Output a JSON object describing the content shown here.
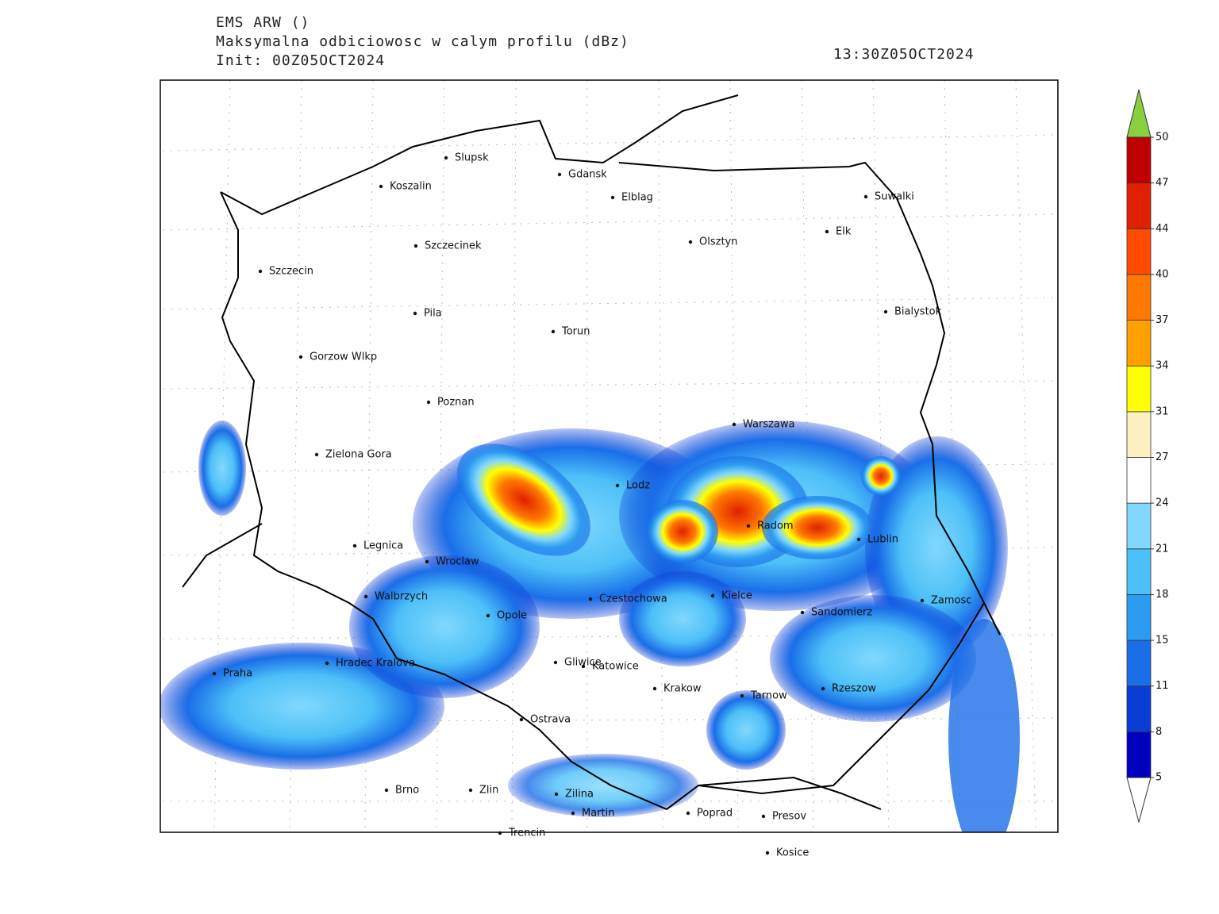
{
  "header": {
    "model": "EMS ARW ()",
    "field": "Maksymalna odbiciowosc w calym profilu (dBz)",
    "init": "Init: 00Z05OCT2024",
    "valid": "13:30Z05OCT2024"
  },
  "cities": [
    "Slupsk",
    "Gdansk",
    "Koszalin",
    "Elblag",
    "Suwalki",
    "Elk",
    "Szczecinek",
    "Olsztyn",
    "Szczecin",
    "Bialystok",
    "Pila",
    "Torun",
    "Gorzow Wlkp",
    "Poznan",
    "Warszawa",
    "Zielona Gora",
    "Lodz",
    "Radom",
    "Legnica",
    "Lublin",
    "Wroclaw",
    "Walbrzych",
    "Czestochowa",
    "Kielce",
    "Zamosc",
    "Opole",
    "Sandomierz",
    "Hradec Kralove",
    "Praha",
    "Gliwice",
    "Katowice",
    "Krakow",
    "Tarnow",
    "Rzeszow",
    "Ostrava",
    "Brno",
    "Zlin",
    "Zilina",
    "Martin",
    "Poprad",
    "Presov",
    "Trencin",
    "Kosice"
  ],
  "colorbar": {
    "ticks": [
      5,
      8,
      11,
      15,
      18,
      21,
      24,
      27,
      31,
      34,
      37,
      40,
      44,
      47,
      50
    ],
    "colors": [
      "#0000c0",
      "#0a3cd6",
      "#1a6ee8",
      "#2c9cf0",
      "#4cc0f8",
      "#82d8fc",
      "#ffffff",
      "#fdf0c0",
      "#ffff00",
      "#ffa000",
      "#ff7800",
      "#ff4a00",
      "#e02000",
      "#c00000"
    ],
    "over_color": "#88d040",
    "under_color": "#ffffff"
  }
}
